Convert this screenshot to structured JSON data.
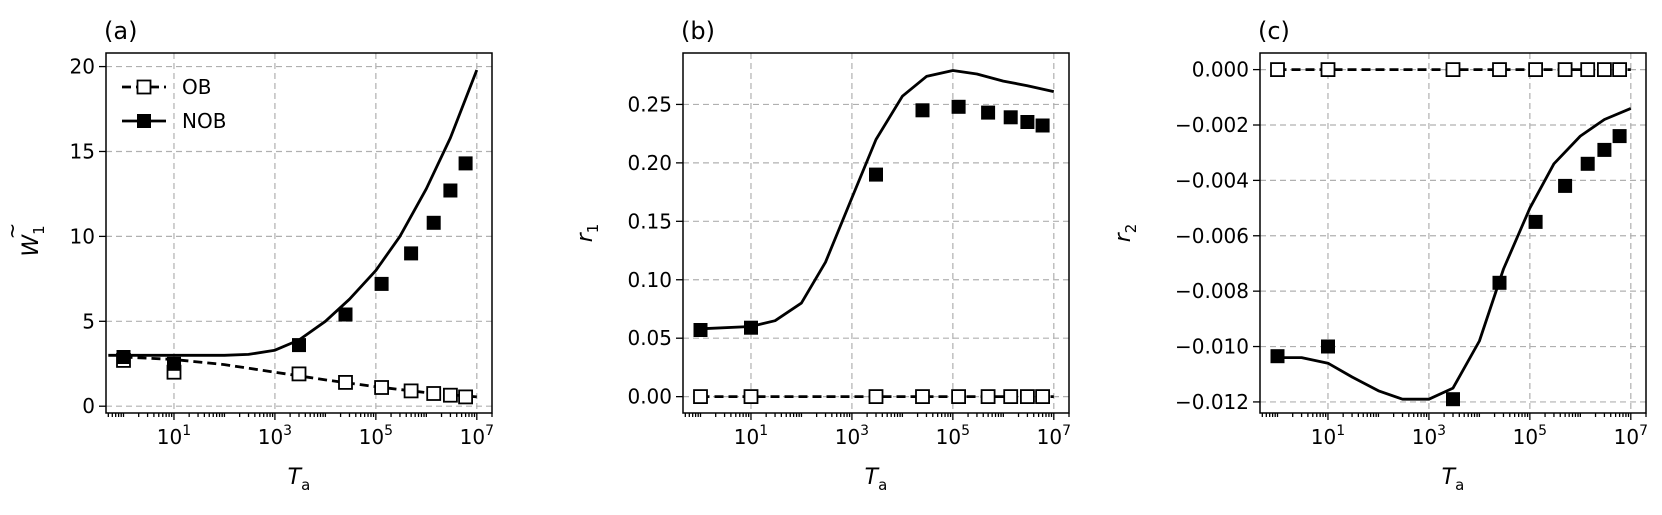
{
  "chart_data": [
    {
      "type": "line",
      "title": "(a)",
      "xlabel": "T_a",
      "ylabel": "W̃_1",
      "xscale": "log",
      "xlim": [
        0.45,
        20000000
      ],
      "ylim": [
        -0.4,
        20.8
      ],
      "xticks": [
        1,
        3,
        5,
        7
      ],
      "yticks": [
        0,
        5,
        10,
        15,
        20
      ],
      "ytick_labels": [
        "0",
        "5",
        "10",
        "15",
        "20"
      ],
      "grid": true,
      "legend": {
        "position": "upper-left",
        "entries": [
          "OB",
          "NOB"
        ]
      },
      "series": [
        {
          "name": "OB",
          "kind": "markers",
          "marker": "square-open",
          "x": [
            1,
            10,
            3000,
            25000,
            130000,
            500000,
            1400000,
            3000000,
            6000000
          ],
          "y": [
            2.7,
            2.0,
            1.9,
            1.4,
            1.1,
            0.9,
            0.75,
            0.65,
            0.55
          ]
        },
        {
          "name": "OB",
          "kind": "line",
          "style": "dashed",
          "x": [
            1,
            10,
            100,
            1000,
            10000,
            100000,
            1000000,
            10000000
          ],
          "y": [
            2.9,
            2.75,
            2.45,
            2.0,
            1.55,
            1.15,
            0.8,
            0.55
          ]
        },
        {
          "name": "NOB",
          "kind": "markers",
          "marker": "square-filled",
          "x": [
            1,
            10,
            3000,
            25000,
            130000,
            500000,
            1400000,
            3000000,
            6000000
          ],
          "y": [
            2.9,
            2.5,
            3.6,
            5.4,
            7.2,
            9.0,
            10.8,
            12.7,
            14.3
          ]
        },
        {
          "name": "NOB",
          "kind": "line",
          "style": "solid",
          "x": [
            0.5,
            1,
            10,
            100,
            300,
            1000,
            3000,
            10000,
            30000,
            100000,
            300000,
            1000000,
            3000000,
            10000000
          ],
          "y": [
            3.0,
            3.0,
            3.0,
            3.0,
            3.05,
            3.3,
            3.9,
            5.0,
            6.3,
            8.0,
            10.0,
            12.8,
            15.8,
            19.8
          ]
        }
      ]
    },
    {
      "type": "line",
      "title": "(b)",
      "xlabel": "T_a",
      "ylabel": "r_1",
      "xscale": "log",
      "xlim": [
        0.45,
        20000000
      ],
      "ylim": [
        -0.014,
        0.294
      ],
      "xticks": [
        1,
        3,
        5,
        7
      ],
      "yticks": [
        0,
        0.05,
        0.1,
        0.15,
        0.2,
        0.25
      ],
      "ytick_labels": [
        "0.00",
        "0.05",
        "0.10",
        "0.15",
        "0.20",
        "0.25"
      ],
      "grid": true,
      "series": [
        {
          "name": "OB",
          "kind": "markers",
          "marker": "square-open",
          "x": [
            1,
            10,
            3000,
            25000,
            130000,
            500000,
            1400000,
            3000000,
            6000000
          ],
          "y": [
            0,
            0,
            0,
            0,
            0,
            0,
            0,
            0,
            0
          ]
        },
        {
          "name": "OB",
          "kind": "line",
          "style": "dashed",
          "x": [
            1,
            10000000
          ],
          "y": [
            0,
            0
          ]
        },
        {
          "name": "NOB",
          "kind": "markers",
          "marker": "square-filled",
          "x": [
            1,
            10,
            3000,
            25000,
            130000,
            500000,
            1400000,
            3000000,
            6000000
          ],
          "y": [
            0.057,
            0.059,
            0.19,
            0.245,
            0.248,
            0.243,
            0.239,
            0.235,
            0.232
          ]
        },
        {
          "name": "NOB",
          "kind": "line",
          "style": "solid",
          "x": [
            1,
            10,
            30,
            100,
            300,
            1000,
            3000,
            10000,
            30000,
            100000,
            300000,
            1000000,
            3000000,
            10000000
          ],
          "y": [
            0.058,
            0.06,
            0.065,
            0.08,
            0.115,
            0.17,
            0.22,
            0.257,
            0.274,
            0.279,
            0.276,
            0.27,
            0.266,
            0.261
          ]
        }
      ]
    },
    {
      "type": "line",
      "title": "(c)",
      "xlabel": "T_a",
      "ylabel": "r_2",
      "xscale": "log",
      "xlim": [
        0.45,
        20000000
      ],
      "ylim": [
        -0.0124,
        0.0006
      ],
      "xticks": [
        1,
        3,
        5,
        7
      ],
      "yticks": [
        0,
        -0.002,
        -0.004,
        -0.006,
        -0.008,
        -0.01,
        -0.012
      ],
      "ytick_labels": [
        "0.000",
        "−0.002",
        "−0.004",
        "−0.006",
        "−0.008",
        "−0.010",
        "−0.012"
      ],
      "grid": true,
      "series": [
        {
          "name": "OB",
          "kind": "markers",
          "marker": "square-open",
          "x": [
            1,
            10,
            3000,
            25000,
            130000,
            500000,
            1400000,
            3000000,
            6000000
          ],
          "y": [
            0,
            0,
            0,
            0,
            0,
            0,
            0,
            0,
            0
          ]
        },
        {
          "name": "OB",
          "kind": "line",
          "style": "dashed",
          "x": [
            1,
            10000000
          ],
          "y": [
            0,
            0
          ]
        },
        {
          "name": "NOB",
          "kind": "markers",
          "marker": "square-filled",
          "x": [
            1,
            10,
            3000,
            25000,
            130000,
            500000,
            1400000,
            3000000,
            6000000
          ],
          "y": [
            -0.01035,
            -0.01,
            -0.0119,
            -0.0077,
            -0.0055,
            -0.0042,
            -0.0034,
            -0.0029,
            -0.0024
          ]
        },
        {
          "name": "NOB",
          "kind": "line",
          "style": "solid",
          "x": [
            1,
            3,
            10,
            30,
            100,
            300,
            1000,
            3000,
            10000,
            30000,
            100000,
            300000,
            1000000,
            3000000,
            10000000
          ],
          "y": [
            -0.0104,
            -0.0104,
            -0.0106,
            -0.0111,
            -0.0116,
            -0.0119,
            -0.0119,
            -0.0115,
            -0.0098,
            -0.0072,
            -0.005,
            -0.0034,
            -0.0024,
            -0.0018,
            -0.0014
          ]
        }
      ]
    }
  ]
}
